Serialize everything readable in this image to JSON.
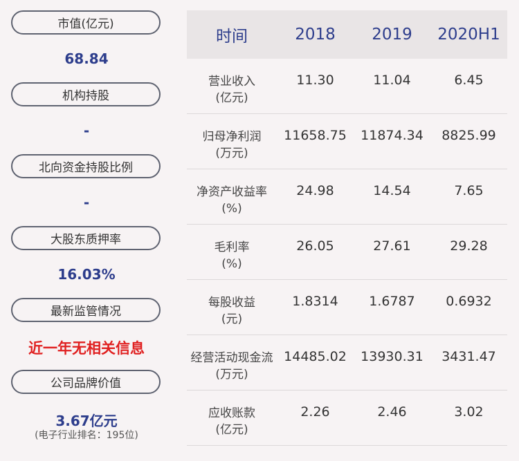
{
  "left": [
    {
      "label": "市值(亿元)",
      "value": "68.84"
    },
    {
      "label": "机构持股",
      "value": "-"
    },
    {
      "label": "北向资金持股比例",
      "value": "-"
    },
    {
      "label": "大股东质押率",
      "value": "16.03%"
    },
    {
      "label": "最新监管情况",
      "value": "近一年无相关信息"
    },
    {
      "label": "公司品牌价值",
      "value": "3.67亿元",
      "note": "(电子行业排名：195位)"
    }
  ],
  "table": {
    "headers": [
      "时间",
      "2018",
      "2019",
      "2020H1"
    ],
    "rows": [
      {
        "name": "营业收入",
        "unit": "(亿元)",
        "values": [
          "11.30",
          "11.04",
          "6.45"
        ]
      },
      {
        "name": "归母净利润",
        "unit": "(万元)",
        "values": [
          "11658.75",
          "11874.34",
          "8825.99"
        ]
      },
      {
        "name": "净资产收益率",
        "unit": "(%)",
        "values": [
          "24.98",
          "14.54",
          "7.65"
        ]
      },
      {
        "name": "毛利率",
        "unit": "(%)",
        "values": [
          "26.05",
          "27.61",
          "29.28"
        ]
      },
      {
        "name": "每股收益",
        "unit": "(元)",
        "values": [
          "1.8314",
          "1.6787",
          "0.6932"
        ]
      },
      {
        "name": "经营活动现金流",
        "unit": "(万元)",
        "values": [
          "14485.02",
          "13930.31",
          "3431.47"
        ]
      },
      {
        "name": "应收账款",
        "unit": "(亿元)",
        "values": [
          "2.26",
          "2.46",
          "3.02"
        ]
      }
    ]
  }
}
